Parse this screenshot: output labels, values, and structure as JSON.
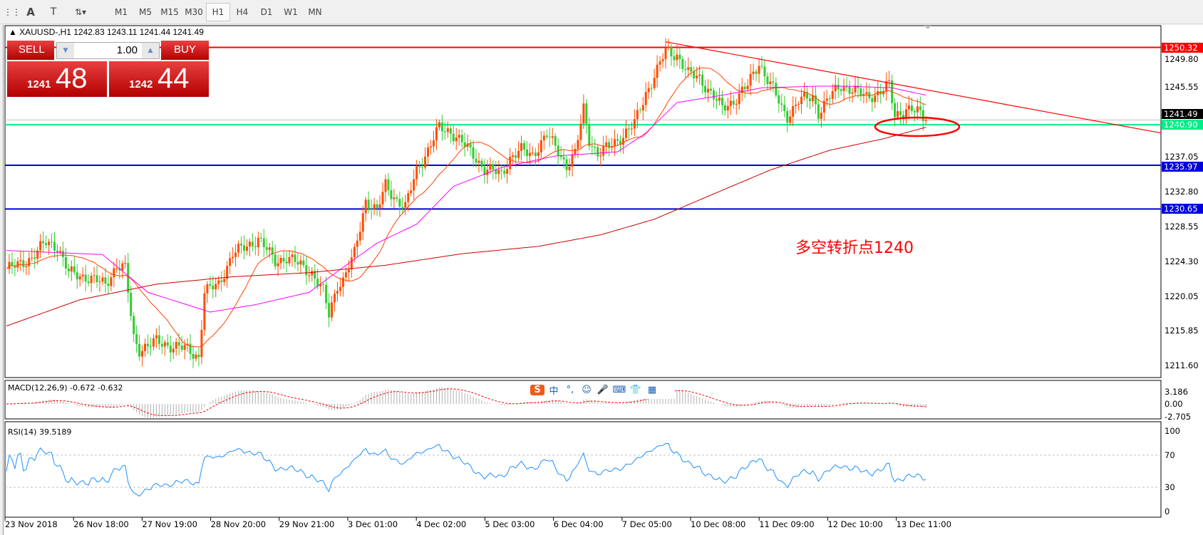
{
  "toolbar": {
    "tools": [
      "grid-lines",
      "text-A",
      "text-label",
      "arrows"
    ],
    "timeframes": [
      "M1",
      "M5",
      "M15",
      "M30",
      "H1",
      "H4",
      "D1",
      "W1",
      "MN"
    ],
    "active": "H1"
  },
  "symbol_line": "XAUUSD-,H1  1242.83 1243.11 1241.44 1241.49",
  "trade_panel": {
    "sell_label": "SELL",
    "buy_label": "BUY",
    "volume": "1.00",
    "sell_big": "1241",
    "sell_small": "48",
    "buy_big": "1242",
    "buy_small": "44"
  },
  "annotation": "多空转折点1240",
  "annotation_color": "#ff0000",
  "price_axis": {
    "ticks": [
      "1249.80",
      "1245.55",
      "1237.05",
      "1232.80",
      "1228.55",
      "1224.30",
      "1220.05",
      "1215.85",
      "1211.60"
    ],
    "current": "1241.49"
  },
  "levels": [
    {
      "label": "1250.32",
      "price": 1250.32,
      "color": "#ff0000"
    },
    {
      "label": "1240.90",
      "price": 1240.9,
      "color": "#00ee88"
    },
    {
      "label": "1235.97",
      "price": 1235.97,
      "color": "#0000dd"
    },
    {
      "label": "1230.65",
      "price": 1230.65,
      "color": "#0000dd"
    }
  ],
  "macd": {
    "label": "MACD(12,26,9) -0.672 -0.632",
    "ticks": [
      "3.186",
      "0.00",
      "-2.705"
    ]
  },
  "rsi": {
    "label": "RSI(14) 39.5189",
    "ticks": [
      "100",
      "70",
      "30",
      "0"
    ]
  },
  "time_axis": [
    "23 Nov 2018",
    "26 Nov 18:00",
    "27 Nov 19:00",
    "28 Nov 20:00",
    "29 Nov 21:00",
    "3 Dec 01:00",
    "4 Dec 02:00",
    "5 Dec 03:00",
    "6 Dec 04:00",
    "7 Dec 05:00",
    "10 Dec 08:00",
    "11 Dec 09:00",
    "12 Dec 10:00",
    "13 Dec 11:00"
  ],
  "ime_toolbar": [
    "S",
    "中",
    "°,",
    "☺",
    "🎤",
    "⌨",
    "👕",
    "▦"
  ],
  "chart_data": {
    "type": "candlestick",
    "symbol": "XAUUSD-",
    "timeframe": "H1",
    "ylim": [
      1211.6,
      1250.8
    ],
    "colors": {
      "up": "#ff4d00",
      "down": "#33cc33",
      "ma_fast": "#ff4500",
      "ma_mid": "#ff00ff",
      "ma_slow": "#cc0000"
    },
    "close_path": [
      [
        0,
        1223.33
      ],
      [
        4,
        1223.8
      ],
      [
        9,
        1224.73
      ],
      [
        14,
        1226.59
      ],
      [
        18,
        1226.13
      ],
      [
        22,
        1222.87
      ],
      [
        28,
        1222.4
      ],
      [
        35,
        1221.47
      ],
      [
        39,
        1223.8
      ],
      [
        42,
        1223.33
      ],
      [
        45,
        1214.95
      ],
      [
        47,
        1213.56
      ],
      [
        53,
        1214.49
      ],
      [
        58,
        1214.02
      ],
      [
        64,
        1213.56
      ],
      [
        68,
        1212.62
      ],
      [
        70,
        1220.54
      ],
      [
        75,
        1221.47
      ],
      [
        80,
        1225.19
      ],
      [
        85,
        1226.13
      ],
      [
        89,
        1227.06
      ],
      [
        92,
        1225.66
      ],
      [
        95,
        1224.26
      ],
      [
        99,
        1224.73
      ],
      [
        104,
        1223.8
      ],
      [
        108,
        1222.87
      ],
      [
        112,
        1220.54
      ],
      [
        114,
        1217.75
      ],
      [
        117,
        1221.47
      ],
      [
        119,
        1221.94
      ],
      [
        123,
        1225.19
      ],
      [
        127,
        1231.71
      ],
      [
        131,
        1230.31
      ],
      [
        134,
        1233.57
      ],
      [
        138,
        1231.71
      ],
      [
        141,
        1230.78
      ],
      [
        145,
        1235.44
      ],
      [
        149,
        1237.76
      ],
      [
        153,
        1240.56
      ],
      [
        157,
        1240.09
      ],
      [
        161,
        1238.7
      ],
      [
        165,
        1237.3
      ],
      [
        169,
        1235.44
      ],
      [
        175,
        1234.97
      ],
      [
        178,
        1236.83
      ],
      [
        182,
        1237.76
      ],
      [
        186,
        1237.3
      ],
      [
        191,
        1239.63
      ],
      [
        195,
        1237.76
      ],
      [
        198,
        1235.9
      ],
      [
        201,
        1237.3
      ],
      [
        204,
        1242.88
      ],
      [
        206,
        1239.16
      ],
      [
        209,
        1237.3
      ],
      [
        213,
        1238.23
      ],
      [
        218,
        1239.63
      ],
      [
        222,
        1241.02
      ],
      [
        226,
        1244.75
      ],
      [
        230,
        1247.54
      ],
      [
        233,
        1249.87
      ],
      [
        237,
        1249.4
      ],
      [
        241,
        1247.08
      ],
      [
        245,
        1246.61
      ],
      [
        249,
        1244.75
      ],
      [
        253,
        1242.88
      ],
      [
        257,
        1243.82
      ],
      [
        262,
        1245.68
      ],
      [
        266,
        1248.47
      ],
      [
        268,
        1247.08
      ],
      [
        271,
        1245.21
      ],
      [
        274,
        1242.88
      ],
      [
        276,
        1241.95
      ],
      [
        280,
        1243.82
      ],
      [
        285,
        1244.28
      ],
      [
        287,
        1242.42
      ],
      [
        291,
        1244.28
      ],
      [
        295,
        1245.68
      ],
      [
        299,
        1245.21
      ],
      [
        304,
        1244.28
      ],
      [
        308,
        1244.75
      ],
      [
        312,
        1245.68
      ],
      [
        314,
        1241.95
      ],
      [
        318,
        1242.88
      ],
      [
        322,
        1242.42
      ],
      [
        325,
        1241.49
      ]
    ],
    "ma_mid_path": [
      [
        0,
        1225.6
      ],
      [
        34,
        1225.1
      ],
      [
        50,
        1220.5
      ],
      [
        72,
        1218.1
      ],
      [
        88,
        1219.0
      ],
      [
        107,
        1220.5
      ],
      [
        118,
        1223.3
      ],
      [
        131,
        1226.5
      ],
      [
        145,
        1228.8
      ],
      [
        158,
        1233.4
      ],
      [
        175,
        1235.7
      ],
      [
        194,
        1237.1
      ],
      [
        216,
        1237.6
      ],
      [
        226,
        1239.9
      ],
      [
        237,
        1243.6
      ],
      [
        253,
        1244.5
      ],
      [
        267,
        1245.4
      ],
      [
        286,
        1245.6
      ],
      [
        297,
        1245.6
      ],
      [
        313,
        1245.4
      ],
      [
        325,
        1244.5
      ]
    ],
    "ma_slow_path": [
      [
        0,
        1216.4
      ],
      [
        26,
        1219.6
      ],
      [
        53,
        1221.5
      ],
      [
        80,
        1222.4
      ],
      [
        107,
        1222.9
      ],
      [
        134,
        1223.8
      ],
      [
        161,
        1225.2
      ],
      [
        188,
        1226.1
      ],
      [
        210,
        1227.5
      ],
      [
        229,
        1229.4
      ],
      [
        248,
        1232.2
      ],
      [
        270,
        1235.4
      ],
      [
        291,
        1237.8
      ],
      [
        310,
        1239.2
      ],
      [
        325,
        1240.6
      ]
    ],
    "trendline": [
      [
        233,
        1251.0
      ],
      [
        1629,
        1239.9
      ]
    ]
  }
}
